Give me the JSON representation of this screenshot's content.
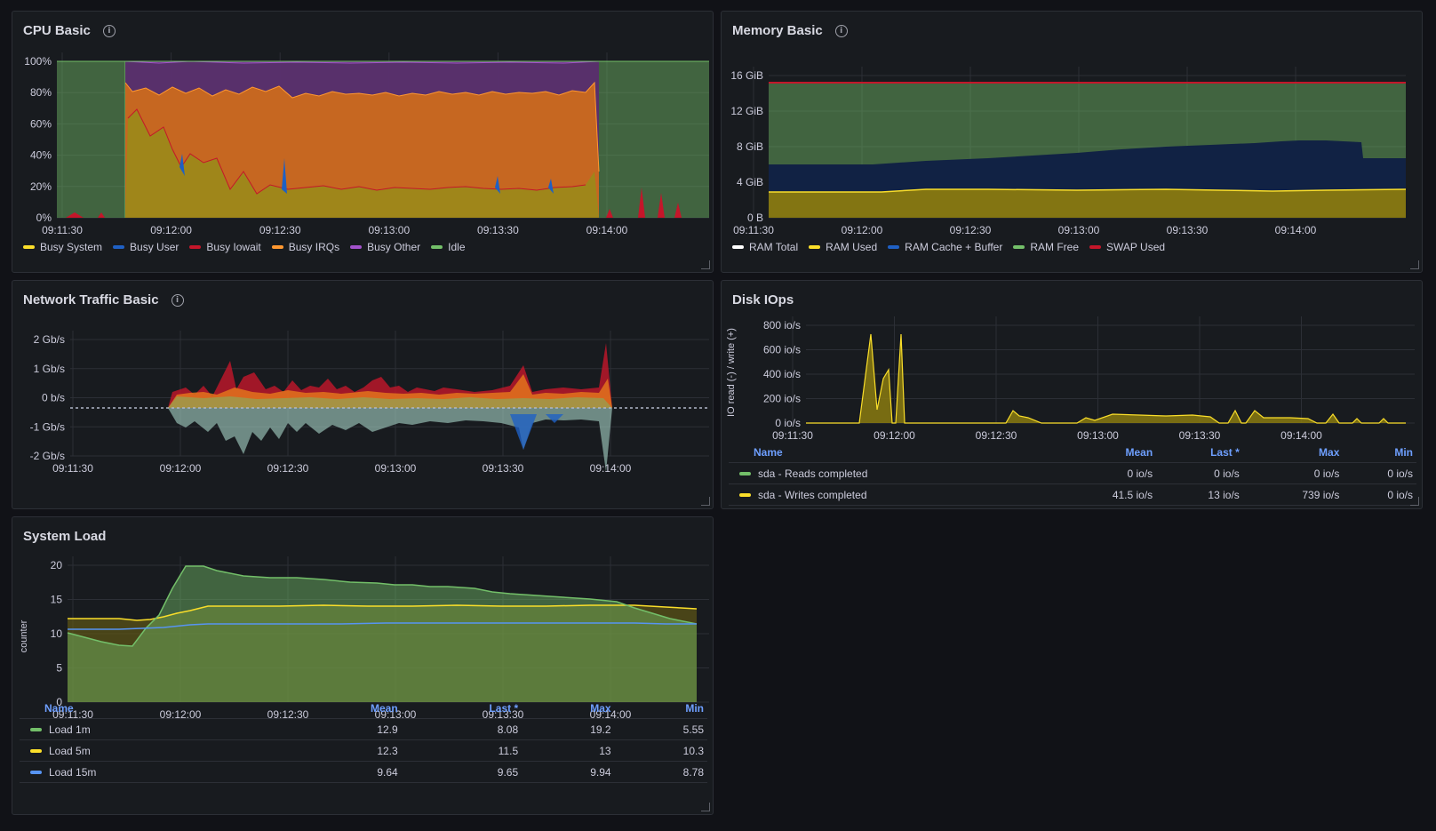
{
  "colors": {
    "green": "#73bf69",
    "yellow": "#fade2a",
    "blue": "#5794f2",
    "red": "#c4162a",
    "orange": "#ff9830",
    "purple": "#a352cc",
    "darkblue": "#1f60c4",
    "white": "#ffffff"
  },
  "cpu": {
    "title": "CPU Basic",
    "yticks": [
      "0%",
      "20%",
      "40%",
      "60%",
      "80%",
      "100%"
    ],
    "xticks": [
      "09:11:30",
      "09:12:00",
      "09:12:30",
      "09:13:00",
      "09:13:30",
      "09:14:00"
    ],
    "legend": [
      {
        "label": "Busy System",
        "color": "#fade2a"
      },
      {
        "label": "Busy User",
        "color": "#1f60c4"
      },
      {
        "label": "Busy Iowait",
        "color": "#c4162a"
      },
      {
        "label": "Busy IRQs",
        "color": "#ff9830"
      },
      {
        "label": "Busy Other",
        "color": "#a352cc"
      },
      {
        "label": "Idle",
        "color": "#73bf69"
      }
    ]
  },
  "memory": {
    "title": "Memory Basic",
    "yticks": [
      "0 B",
      "4 GiB",
      "8 GiB",
      "12 GiB",
      "16 GiB"
    ],
    "xticks": [
      "09:11:30",
      "09:12:00",
      "09:12:30",
      "09:13:00",
      "09:13:30",
      "09:14:00"
    ],
    "legend": [
      {
        "label": "RAM Total",
        "color": "#ffffff"
      },
      {
        "label": "RAM Used",
        "color": "#fade2a"
      },
      {
        "label": "RAM Cache + Buffer",
        "color": "#1f60c4"
      },
      {
        "label": "RAM Free",
        "color": "#73bf69"
      },
      {
        "label": "SWAP Used",
        "color": "#c4162a"
      }
    ]
  },
  "network": {
    "title": "Network Traffic Basic",
    "yticks": [
      "-2 Gb/s",
      "-1 Gb/s",
      "0 b/s",
      "1 Gb/s",
      "2 Gb/s"
    ],
    "xticks": [
      "09:11:30",
      "09:12:00",
      "09:12:30",
      "09:13:00",
      "09:13:30",
      "09:14:00"
    ]
  },
  "disk": {
    "title": "Disk IOps",
    "ylabel": "IO read (-) / write (+)",
    "yticks": [
      "0 io/s",
      "200 io/s",
      "400 io/s",
      "600 io/s",
      "800 io/s"
    ],
    "xticks": [
      "09:11:30",
      "09:12:00",
      "09:12:30",
      "09:13:00",
      "09:13:30",
      "09:14:00"
    ],
    "table": {
      "headers": [
        "Name",
        "Mean",
        "Last *",
        "Max",
        "Min"
      ],
      "rows": [
        {
          "name": "sda - Reads completed",
          "color": "#73bf69",
          "mean": "0 io/s",
          "last": "0 io/s",
          "max": "0 io/s",
          "min": "0 io/s"
        },
        {
          "name": "sda - Writes completed",
          "color": "#fade2a",
          "mean": "41.5 io/s",
          "last": "13 io/s",
          "max": "739 io/s",
          "min": "0 io/s"
        }
      ]
    }
  },
  "load": {
    "title": "System Load",
    "ylabel": "counter",
    "yticks": [
      "0",
      "5",
      "10",
      "15",
      "20"
    ],
    "xticks": [
      "09:11:30",
      "09:12:00",
      "09:12:30",
      "09:13:00",
      "09:13:30",
      "09:14:00"
    ],
    "table": {
      "headers": [
        "Name",
        "Mean",
        "Last *",
        "Max",
        "Min"
      ],
      "rows": [
        {
          "name": "Load 1m",
          "color": "#73bf69",
          "mean": "12.9",
          "last": "8.08",
          "max": "19.2",
          "min": "5.55"
        },
        {
          "name": "Load 5m",
          "color": "#fade2a",
          "mean": "12.3",
          "last": "11.5",
          "max": "13",
          "min": "10.3"
        },
        {
          "name": "Load 15m",
          "color": "#5794f2",
          "mean": "9.64",
          "last": "9.65",
          "max": "9.94",
          "min": "8.78"
        }
      ]
    }
  }
}
